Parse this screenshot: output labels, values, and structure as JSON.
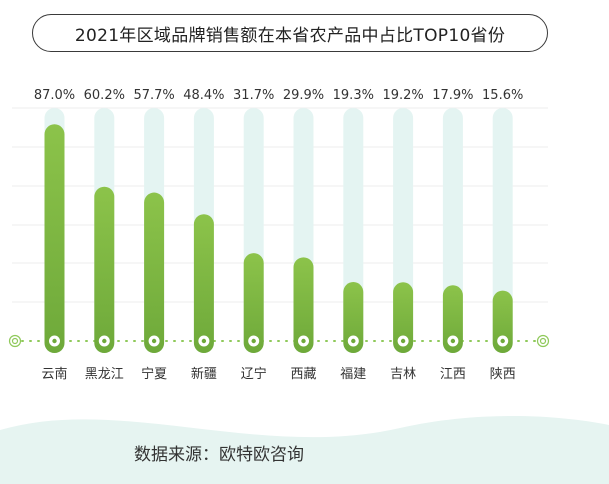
{
  "title": "2021年区域品牌销售额在本省农产品中占比TOP10省份",
  "source": "数据来源：欧特欧咨询",
  "colors": {
    "bar_top": "#8cc34a",
    "bar_bottom": "#6ea93a",
    "track": "#e4f4f2",
    "grid": "#eeeeee",
    "baseline_dot": "#8fc95a",
    "wave": "#e6f4f1"
  },
  "chart_data": {
    "type": "bar",
    "title": "2021年区域品牌销售额在本省农产品中占比TOP10省份",
    "categories": [
      "云南",
      "黑龙江",
      "宁夏",
      "新疆",
      "辽宁",
      "西藏",
      "福建",
      "吉林",
      "江西",
      "陕西"
    ],
    "values": [
      87.0,
      60.2,
      57.7,
      48.4,
      31.7,
      29.9,
      19.3,
      19.2,
      17.9,
      15.6
    ],
    "value_labels": [
      "87.0%",
      "60.2%",
      "57.7%",
      "48.4%",
      "31.7%",
      "29.9%",
      "19.3%",
      "19.2%",
      "17.9%",
      "15.6%"
    ],
    "xlabel": "",
    "ylabel": "",
    "grid": true,
    "legend": "none"
  }
}
